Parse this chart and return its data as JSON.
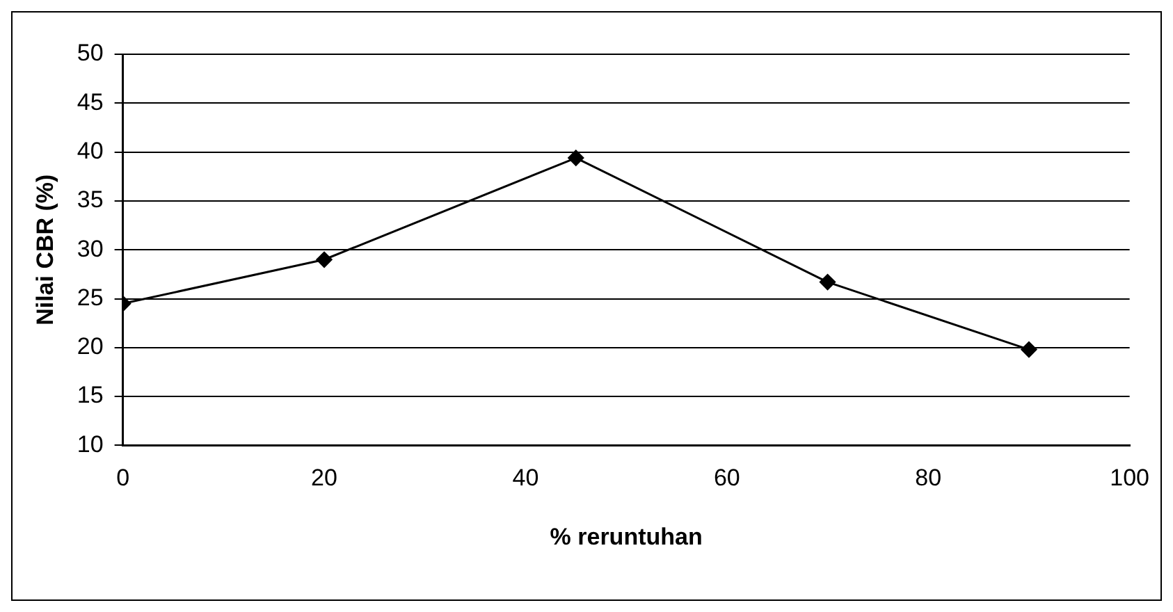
{
  "chart_data": {
    "type": "line",
    "xlabel": "% reruntuhan",
    "ylabel": "Nilai CBR (%)",
    "x": [
      0,
      20,
      45,
      70,
      90
    ],
    "series": [
      {
        "color": "#000000",
        "values": [
          24.5,
          29,
          39.4,
          26.7,
          19.8
        ]
      }
    ],
    "xlim": [
      0,
      100
    ],
    "xticks": [
      0,
      20,
      40,
      60,
      80,
      100
    ],
    "ylim": [
      10,
      50
    ],
    "yticks": [
      10,
      15,
      20,
      25,
      30,
      35,
      40,
      45,
      50
    ],
    "grid": "y",
    "legend": false,
    "marker": "diamond",
    "line_style": "solid"
  }
}
